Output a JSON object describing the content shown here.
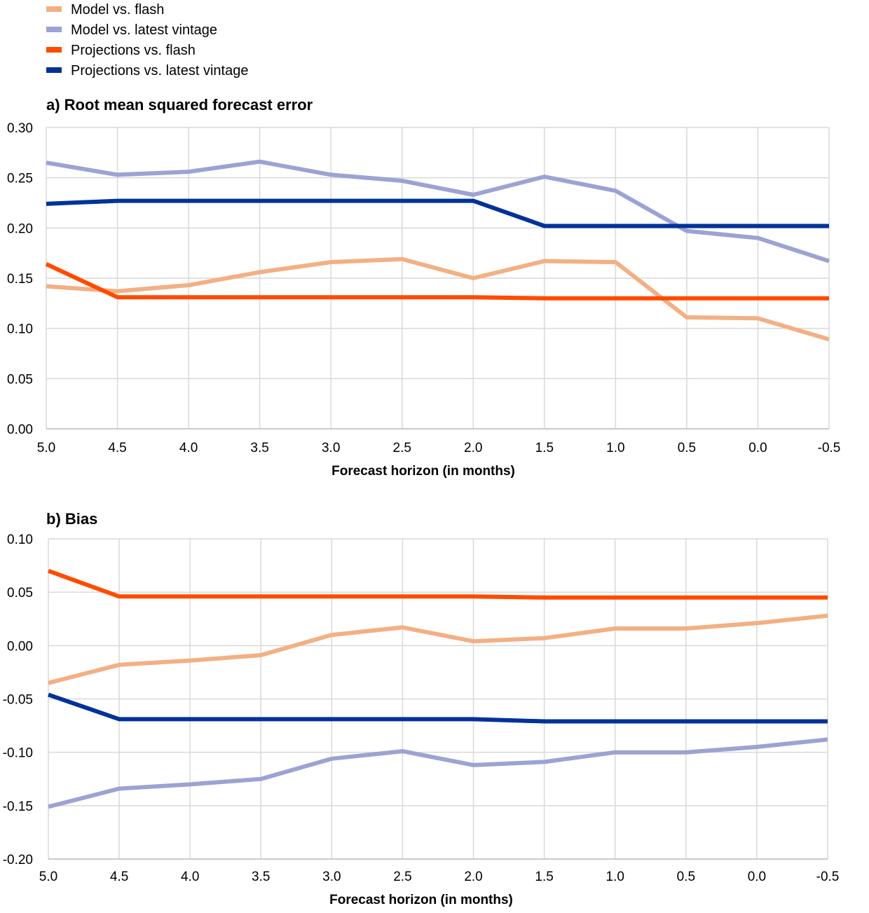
{
  "legend": [
    {
      "name": "Model vs. flash",
      "color": "#F2B084"
    },
    {
      "name": "Model vs. latest vintage",
      "color": "#9CA3D3"
    },
    {
      "name": "Projections vs. flash",
      "color": "#FF4B00"
    },
    {
      "name": "Projections vs. latest vintage",
      "color": "#003299"
    }
  ],
  "chart_data": [
    {
      "type": "line",
      "title": "a) Root mean squared forecast error",
      "xlabel": "Forecast horizon (in months)",
      "ylabel": "",
      "categories": [
        "5.0",
        "4.5",
        "4.0",
        "3.5",
        "3.0",
        "2.5",
        "2.0",
        "1.5",
        "1.0",
        "0.5",
        "0.0",
        "-0.5"
      ],
      "ylim": [
        0,
        0.3
      ],
      "yticks": [
        "0.00",
        "0.05",
        "0.10",
        "0.15",
        "0.20",
        "0.25",
        "0.30"
      ],
      "grid": true,
      "series": [
        {
          "name": "Model vs. flash",
          "color": "#F2B084",
          "values": [
            0.142,
            0.137,
            0.143,
            0.156,
            0.166,
            0.169,
            0.15,
            0.167,
            0.166,
            0.111,
            0.11,
            0.089
          ]
        },
        {
          "name": "Model vs. latest vintage",
          "color": "#9CA3D3",
          "values": [
            0.265,
            0.253,
            0.256,
            0.266,
            0.253,
            0.247,
            0.233,
            0.251,
            0.237,
            0.197,
            0.19,
            0.167
          ]
        },
        {
          "name": "Projections vs. flash",
          "color": "#FF4B00",
          "values": [
            0.164,
            0.131,
            0.131,
            0.131,
            0.131,
            0.131,
            0.131,
            0.13,
            0.13,
            0.13,
            0.13,
            0.13
          ]
        },
        {
          "name": "Projections vs. latest vintage",
          "color": "#003299",
          "values": [
            0.224,
            0.227,
            0.227,
            0.227,
            0.227,
            0.227,
            0.227,
            0.202,
            0.202,
            0.202,
            0.202,
            0.202
          ]
        }
      ]
    },
    {
      "type": "line",
      "title": "b) Bias",
      "xlabel": "Forecast horizon (in months)",
      "ylabel": "",
      "categories": [
        "5.0",
        "4.5",
        "4.0",
        "3.5",
        "3.0",
        "2.5",
        "2.0",
        "1.5",
        "1.0",
        "0.5",
        "0.0",
        "-0.5"
      ],
      "ylim": [
        -0.2,
        0.1
      ],
      "yticks": [
        "-0.20",
        "-0.15",
        "-0.10",
        "-0.05",
        "0.00",
        "0.05",
        "0.10"
      ],
      "grid": true,
      "series": [
        {
          "name": "Model vs. flash",
          "color": "#F2B084",
          "values": [
            -0.035,
            -0.018,
            -0.014,
            -0.009,
            0.01,
            0.017,
            0.004,
            0.007,
            0.016,
            0.016,
            0.021,
            0.028
          ]
        },
        {
          "name": "Model vs. latest vintage",
          "color": "#9CA3D3",
          "values": [
            -0.151,
            -0.134,
            -0.13,
            -0.125,
            -0.106,
            -0.099,
            -0.112,
            -0.109,
            -0.1,
            -0.1,
            -0.095,
            -0.088
          ]
        },
        {
          "name": "Projections vs. flash",
          "color": "#FF4B00",
          "values": [
            0.07,
            0.046,
            0.046,
            0.046,
            0.046,
            0.046,
            0.046,
            0.045,
            0.045,
            0.045,
            0.045,
            0.045
          ]
        },
        {
          "name": "Projections vs. latest vintage",
          "color": "#003299",
          "values": [
            -0.046,
            -0.069,
            -0.069,
            -0.069,
            -0.069,
            -0.069,
            -0.069,
            -0.071,
            -0.071,
            -0.071,
            -0.071,
            -0.071
          ]
        }
      ]
    }
  ]
}
